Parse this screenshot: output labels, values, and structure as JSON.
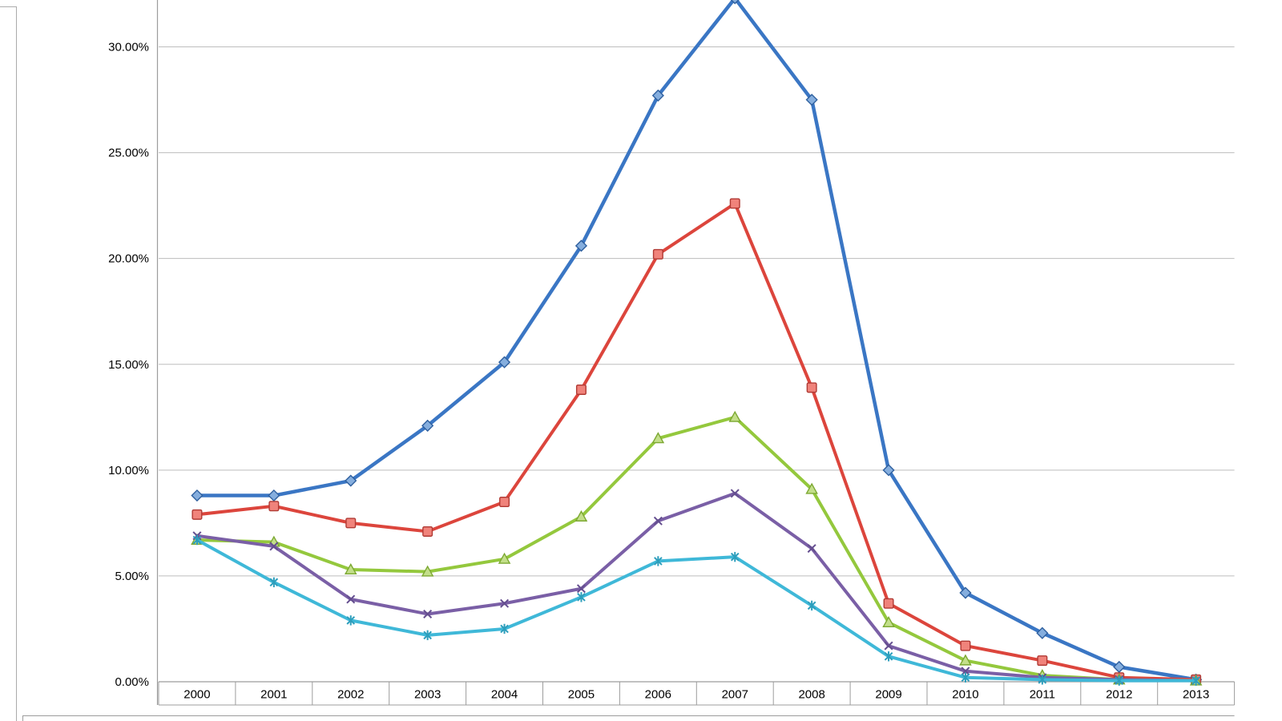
{
  "chart_data": {
    "type": "line",
    "title": "",
    "xlabel": "",
    "ylabel": "",
    "legend": "none",
    "grid": "horizontal",
    "ylim": [
      0,
      32.5
    ],
    "categories": [
      "2000",
      "2001",
      "2002",
      "2003",
      "2004",
      "2005",
      "2006",
      "2007",
      "2008",
      "2009",
      "2010",
      "2011",
      "2012",
      "2013"
    ],
    "y_ticks": [
      {
        "value": 30,
        "label": "30.00%"
      },
      {
        "value": 25,
        "label": "25.00%"
      },
      {
        "value": 20,
        "label": "20.00%"
      },
      {
        "value": 15,
        "label": "15.00%"
      },
      {
        "value": 10,
        "label": "10.00%"
      },
      {
        "value": 5,
        "label": "5.00%"
      },
      {
        "value": 0,
        "label": "0.00%"
      }
    ],
    "series": [
      {
        "name": "series-1-blue-diamond",
        "marker": "diamond",
        "color": "#3A76C4",
        "marker_fill": "#85AEDE",
        "marker_stroke": "#2E5F9E",
        "line_width": 4.5,
        "values": [
          8.8,
          8.8,
          9.5,
          12.1,
          15.1,
          20.6,
          27.7,
          32.3,
          27.5,
          10.0,
          4.2,
          2.3,
          0.7,
          0.1
        ]
      },
      {
        "name": "series-2-red-square",
        "marker": "square",
        "color": "#DC453C",
        "marker_fill": "#F0837B",
        "marker_stroke": "#B03A34",
        "line_width": 4,
        "values": [
          7.9,
          8.3,
          7.5,
          7.1,
          8.5,
          13.8,
          20.2,
          22.6,
          13.9,
          3.7,
          1.7,
          1.0,
          0.2,
          0.1
        ]
      },
      {
        "name": "series-3-green-triangle",
        "marker": "triangle",
        "color": "#94C83D",
        "marker_fill": "#C3Df8A",
        "marker_stroke": "#7CA832",
        "line_width": 4,
        "values": [
          6.7,
          6.6,
          5.3,
          5.2,
          5.8,
          7.8,
          11.5,
          12.5,
          9.1,
          2.8,
          1.0,
          0.3,
          0.1,
          0.05
        ]
      },
      {
        "name": "series-4-purple-x",
        "marker": "x",
        "color": "#7A5FA6",
        "marker_fill": "none",
        "marker_stroke": "#644E8F",
        "line_width": 4,
        "values": [
          6.9,
          6.4,
          3.9,
          3.2,
          3.7,
          4.4,
          7.6,
          8.9,
          6.3,
          1.7,
          0.5,
          0.2,
          0.1,
          0.05
        ]
      },
      {
        "name": "series-5-cyan-asterisk",
        "marker": "asterisk",
        "color": "#3FB8D8",
        "marker_fill": "none",
        "marker_stroke": "#2D9EBC",
        "line_width": 4,
        "values": [
          6.7,
          4.7,
          2.9,
          2.2,
          2.5,
          4.0,
          5.7,
          5.9,
          3.6,
          1.2,
          0.2,
          0.1,
          0.05,
          0.05
        ]
      }
    ]
  },
  "colors": {
    "gridline": "#BDBDBD",
    "axis_line": "#9C9C9C",
    "frame_line": "#ABABAB",
    "label_text": "#000000"
  }
}
